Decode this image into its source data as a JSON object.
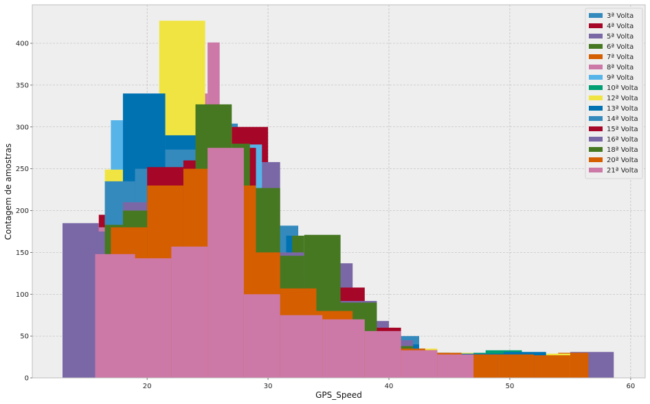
{
  "chart_data": {
    "type": "bar",
    "title": "",
    "xlabel": "GPS_Speed",
    "ylabel": "Contagem de amostras",
    "xlim": [
      10.5,
      61.2
    ],
    "ylim": [
      0,
      446
    ],
    "xticks": [
      20,
      30,
      40,
      50,
      60
    ],
    "yticks": [
      0,
      50,
      100,
      150,
      200,
      250,
      300,
      350,
      400
    ],
    "grid": true,
    "legend_position": "top-right",
    "background": "#EEEEEE",
    "series": [
      {
        "name": "3ª Volta",
        "color": "#348ABD",
        "bins": [
          [
            17.5,
            20.0,
            235
          ],
          [
            20.0,
            22.5,
            290
          ],
          [
            22.5,
            25.0,
            304
          ],
          [
            25.0,
            27.5,
            304
          ],
          [
            27.5,
            30.0,
            295
          ],
          [
            30.0,
            32.5,
            182
          ],
          [
            32.5,
            35.0,
            90
          ],
          [
            35.0,
            37.5,
            75
          ],
          [
            37.5,
            40.0,
            65
          ],
          [
            40.0,
            42.5,
            50
          ],
          [
            42.5,
            45.0,
            30
          ],
          [
            45.0,
            47.5,
            27
          ],
          [
            47.5,
            50.0,
            28
          ],
          [
            50.0,
            52.5,
            28
          ],
          [
            52.5,
            55.0,
            26
          ]
        ]
      },
      {
        "name": "4ª Volta",
        "color": "#A60628",
        "bins": [
          [
            16.0,
            19.5,
            195
          ],
          [
            19.5,
            23.0,
            251
          ],
          [
            23.0,
            26.5,
            250
          ],
          [
            26.5,
            30.0,
            300
          ],
          [
            30.0,
            33.5,
            120
          ],
          [
            33.5,
            37.0,
            100
          ],
          [
            37.0,
            40.5,
            60
          ],
          [
            40.5,
            44.0,
            30
          ],
          [
            44.0,
            47.5,
            28
          ],
          [
            47.5,
            51.0,
            27
          ]
        ]
      },
      {
        "name": "5ª Volta",
        "color": "#7A68A6",
        "bins": [
          [
            13.0,
            16.0,
            185
          ],
          [
            16.0,
            19.0,
            180
          ],
          [
            19.0,
            22.0,
            200
          ],
          [
            22.0,
            25.0,
            266
          ],
          [
            25.0,
            28.0,
            260
          ],
          [
            28.0,
            31.0,
            258
          ],
          [
            31.0,
            34.0,
            70
          ],
          [
            34.0,
            37.0,
            137
          ],
          [
            37.0,
            40.0,
            68
          ],
          [
            40.0,
            43.0,
            35
          ],
          [
            43.0,
            46.0,
            30
          ],
          [
            46.0,
            49.0,
            28
          ],
          [
            49.0,
            52.0,
            27
          ],
          [
            52.0,
            55.0,
            25
          ],
          [
            55.0,
            58.6,
            31
          ]
        ]
      },
      {
        "name": "6ª Volta",
        "color": "#467821",
        "bins": [
          [
            18.0,
            21.0,
            338
          ],
          [
            21.0,
            24.0,
            280
          ],
          [
            24.0,
            27.0,
            265
          ],
          [
            27.0,
            30.0,
            215
          ],
          [
            30.0,
            33.0,
            170
          ],
          [
            33.0,
            36.0,
            90
          ],
          [
            36.0,
            39.0,
            68
          ],
          [
            39.0,
            42.0,
            40
          ],
          [
            42.0,
            45.0,
            30
          ],
          [
            45.0,
            48.0,
            28
          ]
        ]
      },
      {
        "name": "7ª Volta",
        "color": "#D55E00",
        "bins": [
          [
            17.0,
            20.0,
            200
          ],
          [
            20.0,
            23.0,
            250
          ],
          [
            23.0,
            26.0,
            280
          ],
          [
            26.0,
            29.0,
            260
          ],
          [
            29.0,
            30.5,
            180
          ],
          [
            30.5,
            33.0,
            108
          ],
          [
            33.0,
            36.0,
            80
          ],
          [
            36.0,
            39.0,
            60
          ],
          [
            39.0,
            42.0,
            40
          ],
          [
            42.0,
            45.0,
            30
          ],
          [
            45.0,
            48.0,
            28
          ],
          [
            48.0,
            51.0,
            27
          ],
          [
            51.0,
            54.0,
            28
          ],
          [
            54.0,
            56.5,
            30
          ]
        ]
      },
      {
        "name": "8ª Volta",
        "color": "#CC79A7",
        "bins": [
          [
            16.0,
            19.0,
            180
          ],
          [
            19.0,
            22.0,
            240
          ],
          [
            22.0,
            25.0,
            340
          ],
          [
            25.0,
            26.0,
            401
          ],
          [
            26.0,
            29.0,
            275
          ],
          [
            29.0,
            32.0,
            150
          ],
          [
            32.0,
            35.0,
            100
          ],
          [
            35.0,
            38.0,
            75
          ],
          [
            38.0,
            41.0,
            55
          ],
          [
            41.0,
            44.0,
            32
          ],
          [
            44.0,
            47.0,
            28
          ]
        ]
      },
      {
        "name": "9ª Volta",
        "color": "#56B4E9",
        "bins": [
          [
            17.0,
            19.5,
            308
          ],
          [
            19.5,
            22.0,
            300
          ],
          [
            22.0,
            24.5,
            285
          ],
          [
            24.5,
            27.0,
            280
          ],
          [
            27.0,
            29.5,
            279
          ],
          [
            29.5,
            32.0,
            125
          ],
          [
            32.0,
            34.5,
            88
          ],
          [
            34.5,
            37.0,
            70
          ],
          [
            37.0,
            39.5,
            55
          ],
          [
            39.5,
            42.0,
            35
          ]
        ]
      },
      {
        "name": "10ª Volta",
        "color": "#009E73",
        "bins": [
          [
            18.0,
            21.0,
            250
          ],
          [
            21.0,
            24.0,
            280
          ],
          [
            24.0,
            27.0,
            270
          ],
          [
            27.0,
            30.0,
            200
          ],
          [
            30.0,
            33.0,
            110
          ],
          [
            33.0,
            36.0,
            70
          ],
          [
            36.0,
            39.0,
            50
          ],
          [
            39.0,
            42.0,
            35
          ],
          [
            42.0,
            45.0,
            30
          ],
          [
            45.0,
            48.0,
            30
          ],
          [
            48.0,
            51.0,
            33
          ]
        ]
      },
      {
        "name": "12ª Volta",
        "color": "#F0E442",
        "bins": [
          [
            16.5,
            19.5,
            249
          ],
          [
            19.5,
            21.0,
            300
          ],
          [
            21.0,
            24.8,
            427
          ],
          [
            24.8,
            27.0,
            300
          ],
          [
            27.0,
            29.0,
            256
          ],
          [
            29.0,
            32.0,
            120
          ],
          [
            32.0,
            35.0,
            85
          ],
          [
            35.0,
            38.0,
            70
          ],
          [
            38.0,
            41.0,
            50
          ],
          [
            41.0,
            44.0,
            35
          ],
          [
            44.0,
            47.0,
            30
          ],
          [
            47.0,
            50.0,
            28
          ],
          [
            50.0,
            53.0,
            27
          ],
          [
            53.0,
            55.5,
            29
          ]
        ]
      },
      {
        "name": "13ª Volta",
        "color": "#0072B2",
        "bins": [
          [
            18.0,
            21.5,
            340
          ],
          [
            21.5,
            25.0,
            290
          ],
          [
            25.0,
            28.5,
            250
          ],
          [
            28.5,
            32.0,
            170
          ],
          [
            32.0,
            35.5,
            90
          ],
          [
            35.5,
            39.0,
            70
          ],
          [
            39.0,
            42.5,
            40
          ],
          [
            42.5,
            46.0,
            30
          ],
          [
            46.0,
            49.5,
            29
          ],
          [
            49.5,
            53.0,
            31
          ]
        ]
      },
      {
        "name": "14ª Volta",
        "color": "#348ABD",
        "bins": [
          [
            16.5,
            19.0,
            235
          ],
          [
            19.0,
            21.5,
            250
          ],
          [
            21.5,
            24.0,
            273
          ],
          [
            24.0,
            26.5,
            270
          ],
          [
            26.5,
            29.0,
            250
          ],
          [
            29.0,
            31.5,
            180
          ],
          [
            31.5,
            34.0,
            82
          ],
          [
            34.0,
            36.5,
            75
          ],
          [
            36.5,
            39.0,
            65
          ],
          [
            39.0,
            41.5,
            45
          ],
          [
            41.5,
            44.0,
            30
          ],
          [
            44.0,
            46.5,
            27
          ],
          [
            46.5,
            49.0,
            28
          ],
          [
            49.0,
            51.5,
            26
          ],
          [
            51.5,
            54.0,
            26
          ]
        ]
      },
      {
        "name": "15ª Volta",
        "color": "#A60628",
        "bins": [
          [
            17.0,
            20.0,
            175
          ],
          [
            20.0,
            23.0,
            252
          ],
          [
            23.0,
            26.0,
            260
          ],
          [
            26.0,
            29.0,
            275
          ],
          [
            29.0,
            32.0,
            120
          ],
          [
            32.0,
            35.0,
            108
          ],
          [
            35.0,
            38.0,
            108
          ],
          [
            38.0,
            41.0,
            60
          ],
          [
            41.0,
            44.0,
            33
          ],
          [
            44.0,
            47.0,
            27
          ],
          [
            47.0,
            49.0,
            25
          ],
          [
            49.0,
            52.0,
            25
          ]
        ]
      },
      {
        "name": "16ª Volta",
        "color": "#7A68A6",
        "bins": [
          [
            15.0,
            18.0,
            175
          ],
          [
            18.0,
            21.0,
            210
          ],
          [
            21.0,
            24.0,
            200
          ],
          [
            24.0,
            27.0,
            230
          ],
          [
            27.0,
            30.0,
            190
          ],
          [
            30.0,
            33.0,
            150
          ],
          [
            33.0,
            36.0,
            88
          ],
          [
            36.0,
            39.0,
            92
          ],
          [
            39.0,
            42.0,
            45
          ],
          [
            42.0,
            45.0,
            30
          ],
          [
            45.0,
            48.0,
            28
          ],
          [
            48.0,
            51.0,
            25
          ]
        ]
      },
      {
        "name": "18ª Volta",
        "color": "#467821",
        "bins": [
          [
            16.5,
            18.0,
            183
          ],
          [
            18.0,
            21.5,
            200
          ],
          [
            21.5,
            24.0,
            210
          ],
          [
            24.0,
            27.0,
            327
          ],
          [
            27.0,
            28.5,
            280
          ],
          [
            28.5,
            31.0,
            227
          ],
          [
            31.0,
            33.0,
            146
          ],
          [
            33.0,
            36.0,
            171
          ],
          [
            36.0,
            39.0,
            90
          ],
          [
            39.0,
            42.0,
            38
          ],
          [
            42.0,
            45.0,
            30
          ],
          [
            45.0,
            48.0,
            25
          ]
        ]
      },
      {
        "name": "20ª Volta",
        "color": "#D55E00",
        "bins": [
          [
            17.0,
            20.0,
            180
          ],
          [
            20.0,
            23.0,
            230
          ],
          [
            23.0,
            26.0,
            250
          ],
          [
            26.0,
            29.0,
            230
          ],
          [
            29.0,
            31.0,
            150
          ],
          [
            31.0,
            34.0,
            107
          ],
          [
            34.0,
            37.0,
            80
          ],
          [
            37.0,
            40.0,
            55
          ],
          [
            40.0,
            43.0,
            35
          ],
          [
            43.0,
            46.0,
            30
          ],
          [
            46.0,
            49.0,
            28
          ],
          [
            49.0,
            52.0,
            28
          ],
          [
            52.0,
            55.0,
            27
          ],
          [
            55.0,
            56.5,
            30
          ]
        ]
      },
      {
        "name": "21ª Volta",
        "color": "#CC79A7",
        "bins": [
          [
            15.7,
            19.0,
            148
          ],
          [
            19.0,
            22.0,
            143
          ],
          [
            22.0,
            25.0,
            157
          ],
          [
            25.0,
            28.0,
            275
          ],
          [
            28.0,
            31.0,
            100
          ],
          [
            31.0,
            34.5,
            75
          ],
          [
            34.5,
            38.0,
            70
          ],
          [
            38.0,
            41.0,
            56
          ],
          [
            41.0,
            44.0,
            33
          ],
          [
            44.0,
            47.0,
            28
          ]
        ]
      }
    ]
  }
}
